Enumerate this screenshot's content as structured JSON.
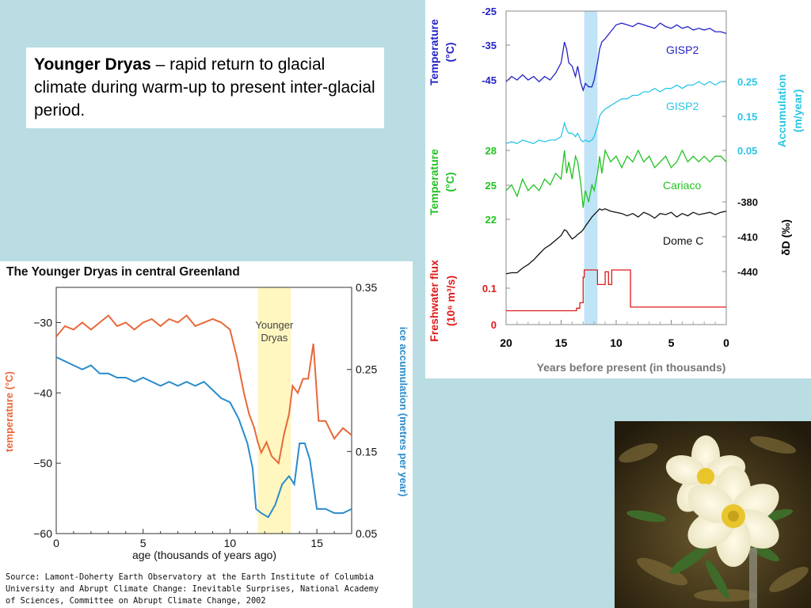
{
  "slide": {
    "heading_bold": "Younger Dryas",
    "heading_rest": " – rapid return to glacial climate during warm-up to present inter-glacial period."
  },
  "chart_data": [
    {
      "type": "line",
      "title": "",
      "xlabel": "Years before present (in thousands)",
      "xlim": [
        20,
        0
      ],
      "x_ticks": [
        "20",
        "15",
        "10",
        "5",
        "0"
      ],
      "highlight": {
        "x0": 12.9,
        "x1": 11.7,
        "color": "#bfe4f6"
      },
      "series": [
        {
          "name": "GISP2",
          "quantity": "Temperature (°C)",
          "color": "#2323c8",
          "axis": "left",
          "ticks": [
            "-25",
            "-35",
            "-45"
          ],
          "x": [
            20,
            19.5,
            19,
            18.5,
            18,
            17.5,
            17,
            16.5,
            16,
            15.5,
            15,
            14.7,
            14.5,
            14.3,
            14,
            13.7,
            13.5,
            13.2,
            13,
            12.8,
            12.5,
            12.2,
            12,
            11.7,
            11.5,
            11.3,
            11,
            10.5,
            10,
            9.5,
            9,
            8.5,
            8,
            7.5,
            7,
            6.5,
            6,
            5.5,
            5,
            4.5,
            4,
            3.5,
            3,
            2.5,
            2,
            1.5,
            1,
            0.5,
            0
          ],
          "y": [
            -45.5,
            -44,
            -45,
            -43.5,
            -45,
            -44,
            -45.5,
            -44,
            -45,
            -43,
            -40,
            -34,
            -36,
            -40,
            -41,
            -44,
            -41,
            -46,
            -48,
            -46,
            -47,
            -47,
            -45,
            -40,
            -36,
            -34,
            -33,
            -31,
            -29,
            -28.5,
            -29,
            -29.5,
            -28.5,
            -29,
            -29.5,
            -30,
            -28.5,
            -29.5,
            -30,
            -29,
            -30,
            -29.5,
            -30.5,
            -30,
            -30.5,
            -30,
            -31,
            -31,
            -31.5
          ]
        },
        {
          "name": "GISP2",
          "quantity": "Accumulation (m/year)",
          "color": "#2ac6e6",
          "axis": "right",
          "ticks": [
            "0.25",
            "0.15",
            "0.05"
          ],
          "x": [
            20,
            19.5,
            19,
            18.5,
            18,
            17.5,
            17,
            16.5,
            16,
            15.5,
            15,
            14.7,
            14.5,
            14.3,
            14,
            13.7,
            13.5,
            13.2,
            13,
            12.8,
            12.5,
            12.2,
            12,
            11.7,
            11.5,
            11.3,
            11,
            10.5,
            10,
            9.5,
            9,
            8.5,
            8,
            7.5,
            7,
            6.5,
            6,
            5.5,
            5,
            4.5,
            4,
            3.5,
            3,
            2.5,
            2,
            1.5,
            1,
            0.5,
            0
          ],
          "y": [
            0.07,
            0.075,
            0.07,
            0.08,
            0.075,
            0.07,
            0.08,
            0.075,
            0.08,
            0.08,
            0.09,
            0.13,
            0.11,
            0.1,
            0.1,
            0.09,
            0.1,
            0.08,
            0.075,
            0.08,
            0.075,
            0.08,
            0.09,
            0.12,
            0.15,
            0.16,
            0.17,
            0.18,
            0.19,
            0.2,
            0.2,
            0.21,
            0.21,
            0.22,
            0.22,
            0.23,
            0.22,
            0.23,
            0.23,
            0.24,
            0.23,
            0.24,
            0.24,
            0.25,
            0.24,
            0.25,
            0.24,
            0.25,
            0.25
          ]
        },
        {
          "name": "Cariaco",
          "quantity": "Temperature (°C)",
          "color": "#22c222",
          "axis": "left",
          "ticks": [
            "28",
            "25",
            "22"
          ],
          "x": [
            20,
            19.5,
            19,
            18.5,
            18,
            17.5,
            17,
            16.5,
            16,
            15.5,
            15,
            14.7,
            14.5,
            14.3,
            14,
            13.7,
            13.5,
            13.2,
            13,
            12.8,
            12.5,
            12.2,
            12,
            11.7,
            11.5,
            11.3,
            11,
            10.5,
            10,
            9.5,
            9,
            8.5,
            8,
            7.5,
            7,
            6.5,
            6,
            5.5,
            5,
            4.5,
            4,
            3.5,
            3,
            2.5,
            2,
            1.5,
            1,
            0.5,
            0
          ],
          "y": [
            24.5,
            25,
            24,
            25.5,
            24.5,
            25,
            24.5,
            25.5,
            25,
            26,
            25.5,
            28,
            26,
            27,
            25.5,
            27.5,
            27,
            25,
            23,
            24.5,
            23.5,
            25,
            24.5,
            26,
            27.5,
            26,
            28,
            27,
            27.5,
            26.5,
            27.5,
            27,
            28,
            27,
            27.5,
            26.5,
            27,
            27.5,
            26.5,
            27,
            28,
            27,
            27.5,
            27,
            27.5,
            27,
            27.5,
            27.5,
            27
          ]
        },
        {
          "name": "Dome C",
          "quantity": "δD (‰)",
          "color": "#111111",
          "axis": "right",
          "ticks": [
            "-380",
            "-410",
            "-440"
          ],
          "x": [
            20,
            19.5,
            19,
            18.5,
            18,
            17.5,
            17,
            16.5,
            16,
            15.5,
            15,
            14.7,
            14.5,
            14.3,
            14,
            13.7,
            13.5,
            13.2,
            13,
            12.8,
            12.5,
            12.2,
            12,
            11.7,
            11.5,
            11.3,
            11,
            10.5,
            10,
            9.5,
            9,
            8.5,
            8,
            7.5,
            7,
            6.5,
            6,
            5.5,
            5,
            4.5,
            4,
            3.5,
            3,
            2.5,
            2,
            1.5,
            1,
            0.5,
            0
          ],
          "y": [
            -442,
            -441,
            -441,
            -437,
            -434,
            -430,
            -425,
            -420,
            -417,
            -413,
            -409,
            -404,
            -405,
            -408,
            -412,
            -410,
            -408,
            -406,
            -404,
            -401,
            -397,
            -393,
            -391,
            -388,
            -386,
            -387,
            -386,
            -388,
            -389,
            -390,
            -392,
            -390,
            -393,
            -389,
            -391,
            -394,
            -390,
            -391,
            -389,
            -393,
            -390,
            -392,
            -389,
            -391,
            -390,
            -389,
            -391,
            -389,
            -388
          ]
        },
        {
          "name": "Freshwater flux",
          "quantity": "Freshwater flux (10^6 m³/s)",
          "color": "#e01a1a",
          "axis": "left",
          "ticks": [
            "0.1",
            "0"
          ],
          "x": [
            20,
            19,
            18,
            17,
            16,
            15,
            14,
            13.6,
            13.6,
            13.3,
            13.3,
            13,
            13,
            12.9,
            12.9,
            11.7,
            11.7,
            11,
            11,
            10.7,
            10.7,
            10.4,
            10.4,
            10.2,
            10.2,
            8.7,
            8.7,
            7,
            5,
            3,
            1,
            0
          ],
          "y": [
            0.038,
            0.038,
            0.038,
            0.038,
            0.038,
            0.038,
            0.038,
            0.038,
            0.045,
            0.045,
            0.06,
            0.06,
            0.13,
            0.13,
            0.15,
            0.15,
            0.11,
            0.11,
            0.145,
            0.145,
            0.11,
            0.11,
            0.15,
            0.15,
            0.15,
            0.15,
            0.048,
            0.048,
            0.048,
            0.048,
            0.048,
            0.048
          ]
        }
      ],
      "labels": {
        "temp_axis_a": "Temperature",
        "temp_axis_b": "(°C)",
        "acc_axis_a": "Accumulation",
        "acc_axis_b": "(m/year)",
        "temp2_axis_a": "Temperature",
        "temp2_axis_b": "(°C)",
        "dd_axis": "δD (‰)",
        "fw_axis_a": "Freshwater flux",
        "fw_axis_b": "(10⁶ m³/s)",
        "gisp2_temp": "GISP2",
        "gisp2_acc": "GISP2",
        "cariaco": "Cariaco",
        "domec": "Dome C"
      }
    },
    {
      "type": "line",
      "title": "The Younger Dryas in central Greenland",
      "xlabel": "age (thousands of years ago)",
      "ylabel_left": "temperature (°C)",
      "ylabel_right": "ice accumulation (metres per year)",
      "xlim": [
        0,
        17
      ],
      "ylim_left": [
        -60,
        -25
      ],
      "ylim_right": [
        0.05,
        0.35
      ],
      "x_ticks": [
        "0",
        "5",
        "10",
        "15"
      ],
      "y_ticks_left": [
        "−30",
        "−40",
        "−50",
        "−60"
      ],
      "y_ticks_right": [
        "0.35",
        "0.25",
        "0.15",
        "0.05"
      ],
      "highlight": {
        "x0": 11.6,
        "x1": 13.5,
        "color": "#fff6c0",
        "label_a": "Younger",
        "label_b": "Dryas"
      },
      "series": [
        {
          "name": "temperature",
          "color": "#e8683a",
          "axis": "left",
          "x": [
            0,
            0.5,
            1,
            1.5,
            2,
            2.5,
            3,
            3.5,
            4,
            4.5,
            5,
            5.5,
            6,
            6.5,
            7,
            7.5,
            8,
            8.5,
            9,
            9.5,
            10,
            10.4,
            10.8,
            11.1,
            11.4,
            11.6,
            11.8,
            12.1,
            12.4,
            12.8,
            13.1,
            13.4,
            13.6,
            13.9,
            14.2,
            14.5,
            14.8,
            15.1,
            15.5,
            16,
            16.5,
            17
          ],
          "y": [
            -32,
            -30.5,
            -31,
            -30,
            -31,
            -30,
            -29,
            -30.5,
            -30,
            -31,
            -30,
            -29.5,
            -30.5,
            -29.5,
            -30,
            -29,
            -30.5,
            -30,
            -29.5,
            -30,
            -31,
            -35,
            -40,
            -43,
            -45,
            -47,
            -48.5,
            -47,
            -49,
            -50,
            -46,
            -43,
            -39,
            -40,
            -38,
            -38,
            -33,
            -44,
            -44,
            -46.5,
            -45,
            -46
          ]
        },
        {
          "name": "ice accumulation",
          "color": "#2a8ccc",
          "axis": "right",
          "x": [
            0,
            0.5,
            1,
            1.5,
            2,
            2.5,
            3,
            3.5,
            4,
            4.5,
            5,
            5.5,
            6,
            6.5,
            7,
            7.5,
            8,
            8.5,
            9,
            9.5,
            10,
            10.5,
            11,
            11.3,
            11.5,
            11.8,
            12.2,
            12.6,
            13,
            13.4,
            13.7,
            14,
            14.3,
            14.6,
            15,
            15.5,
            16,
            16.5,
            17
          ],
          "y": [
            0.265,
            0.26,
            0.255,
            0.25,
            0.255,
            0.245,
            0.245,
            0.24,
            0.24,
            0.235,
            0.24,
            0.235,
            0.23,
            0.235,
            0.23,
            0.235,
            0.23,
            0.235,
            0.225,
            0.215,
            0.21,
            0.19,
            0.16,
            0.13,
            0.08,
            0.075,
            0.07,
            0.085,
            0.11,
            0.12,
            0.11,
            0.16,
            0.16,
            0.14,
            0.08,
            0.08,
            0.075,
            0.075,
            0.08
          ]
        }
      ],
      "source_lines": [
        "Source: Lamont-Doherty Earth Observatory at the Earth Institute of Columbia",
        "University and Abrupt Climate Change: Inevitable Surprises, National Academy",
        "of Sciences, Committee on Abrupt Climate Change, 2002"
      ]
    }
  ],
  "photo": {
    "subject": "white mountain avens flowers",
    "icon": "flower-photo"
  }
}
